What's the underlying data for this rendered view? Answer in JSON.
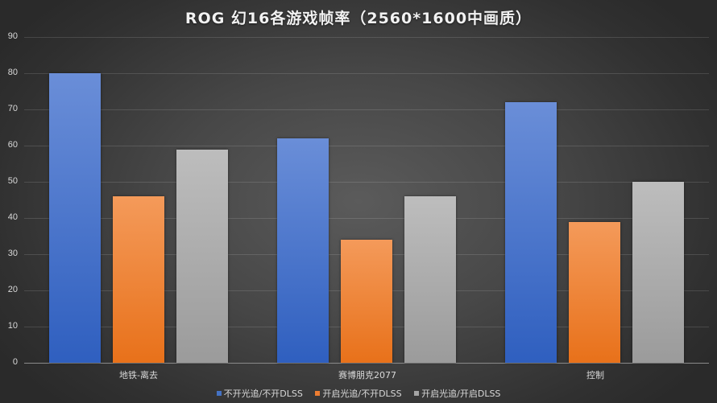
{
  "chart_data": {
    "type": "bar",
    "title": "ROG 幻16各游戏帧率（2560*1600中画质）",
    "categories": [
      "地铁-离去",
      "赛博朋克2077",
      "控制"
    ],
    "series": [
      {
        "name": "不开光追/不开DLSS",
        "color": "#4472c4",
        "values": [
          80,
          62,
          72
        ]
      },
      {
        "name": "开启光追/不开DLSS",
        "color": "#ed7d31",
        "values": [
          46,
          34,
          39
        ]
      },
      {
        "name": "开启光追/开启DLSS",
        "color": "#a5a5a5",
        "values": [
          59,
          46,
          50
        ]
      }
    ],
    "xlabel": "",
    "ylabel": "",
    "ylim": [
      0,
      90
    ],
    "yticks": [
      "0",
      "10",
      "20",
      "30",
      "40",
      "50",
      "60",
      "70",
      "80",
      "90"
    ],
    "grid": true,
    "legend_position": "bottom"
  }
}
